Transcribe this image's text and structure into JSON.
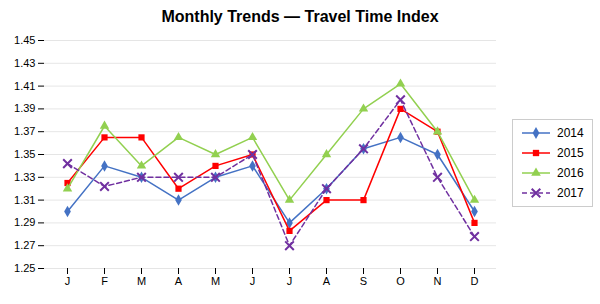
{
  "chart_data": {
    "type": "line",
    "title": "Monthly Trends — Travel Time Index",
    "categories": [
      "J",
      "F",
      "M",
      "A",
      "M",
      "J",
      "J",
      "A",
      "S",
      "O",
      "N",
      "D"
    ],
    "series": [
      {
        "name": "2014",
        "color": "#4472C4",
        "marker": "diamond",
        "line_style": "solid",
        "values": [
          1.3,
          1.34,
          1.33,
          1.31,
          1.33,
          1.34,
          1.29,
          1.32,
          1.355,
          1.365,
          1.35,
          1.3
        ]
      },
      {
        "name": "2015",
        "color": "#FF0000",
        "marker": "square",
        "line_style": "solid",
        "values": [
          1.325,
          1.365,
          1.365,
          1.32,
          1.34,
          1.35,
          1.283,
          1.31,
          1.31,
          1.39,
          1.37,
          1.29
        ]
      },
      {
        "name": "2016",
        "color": "#92D050",
        "marker": "triangle",
        "line_style": "solid",
        "values": [
          1.32,
          1.375,
          1.34,
          1.365,
          1.35,
          1.365,
          1.31,
          1.35,
          1.39,
          1.412,
          1.37,
          1.31
        ]
      },
      {
        "name": "2017",
        "color": "#7030A0",
        "marker": "x",
        "line_style": "dashed",
        "values": [
          1.342,
          1.322,
          1.33,
          1.33,
          1.33,
          1.35,
          1.27,
          1.32,
          1.355,
          1.398,
          1.33,
          1.278
        ]
      }
    ],
    "ylim": [
      1.25,
      1.45
    ],
    "yticks": [
      1.25,
      1.27,
      1.29,
      1.31,
      1.33,
      1.35,
      1.37,
      1.39,
      1.41,
      1.43,
      1.45
    ],
    "grid": true,
    "legend": "right"
  }
}
